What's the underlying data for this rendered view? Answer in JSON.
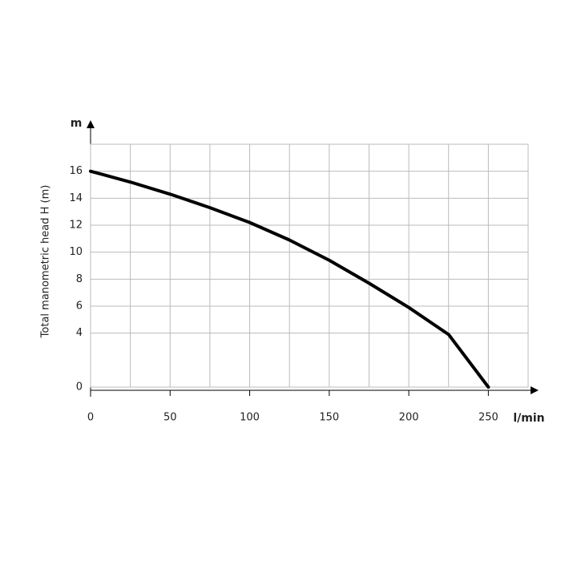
{
  "chart_data": {
    "type": "line",
    "y_unit": "m",
    "x_unit": "l/min",
    "y_label": "Total manometric head H (m)",
    "x": [
      0,
      25,
      50,
      75,
      100,
      125,
      150,
      175,
      200,
      225,
      250
    ],
    "series": [
      {
        "color": "#000000",
        "values": [
          16,
          15.2,
          14.3,
          13.3,
          12.2,
          10.9,
          9.4,
          7.7,
          5.9,
          3.9,
          0
        ]
      }
    ],
    "xlim": [
      0,
      275
    ],
    "xticks": [
      0,
      50,
      100,
      150,
      200,
      250
    ],
    "ylim": [
      0,
      18
    ],
    "yticks": [
      0,
      4,
      6,
      8,
      10,
      12,
      14,
      16
    ],
    "grid": true
  }
}
